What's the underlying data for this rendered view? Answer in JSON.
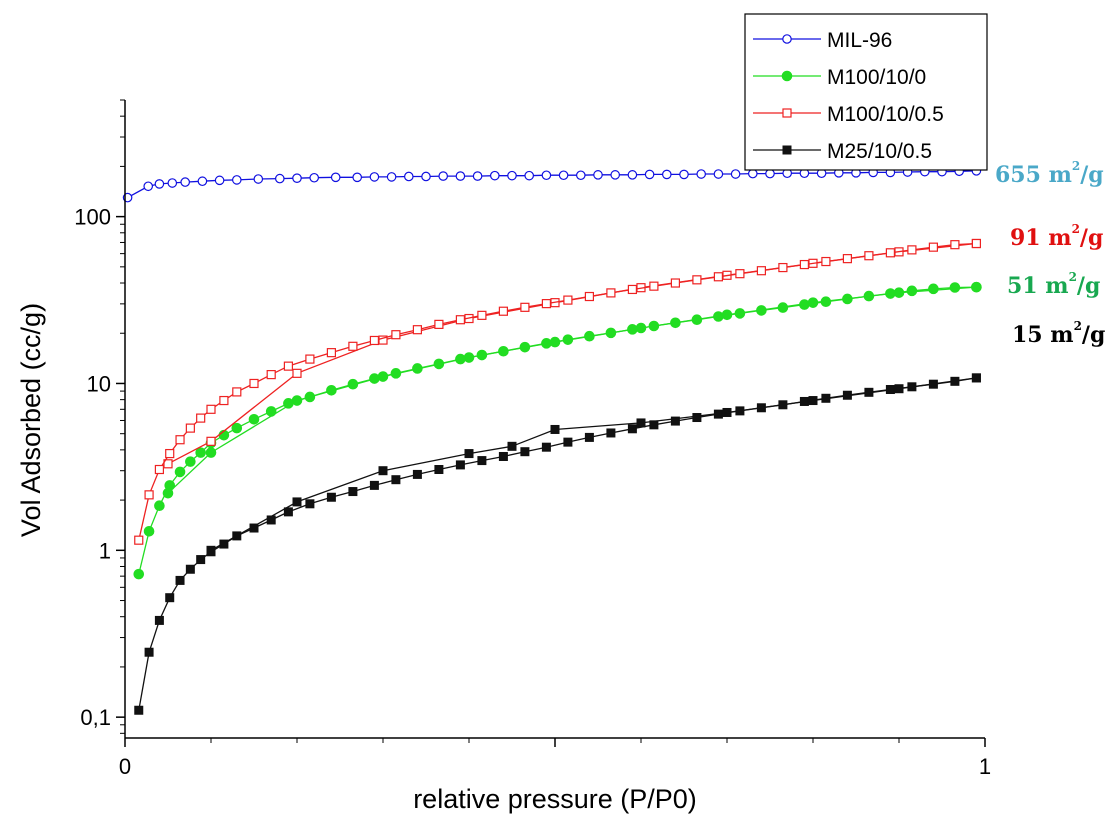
{
  "chart_data": {
    "type": "line",
    "xlabel": "relative pressure (P/P0)",
    "ylabel": "Vol Adsorbed (cc/g)",
    "xlim": [
      0,
      1
    ],
    "ylim": [
      0.075,
      500
    ],
    "yscale": "log",
    "x_ticks": [
      {
        "value": 0,
        "label": "0"
      },
      {
        "value": 0.5,
        "label": ""
      },
      {
        "value": 1,
        "label": "1"
      }
    ],
    "y_ticks": [
      {
        "value": 0.1,
        "label": "0,1"
      },
      {
        "value": 1,
        "label": "1"
      },
      {
        "value": 10,
        "label": "10"
      },
      {
        "value": 100,
        "label": "100"
      }
    ],
    "legend_position": "top-right",
    "grid": false,
    "series": [
      {
        "name": "MIL-96",
        "color": "#1010e0",
        "marker": "circle-open",
        "points": [
          [
            0.003,
            130
          ],
          [
            0.027,
            152
          ],
          [
            0.04,
            157
          ],
          [
            0.055,
            159
          ],
          [
            0.07,
            161
          ],
          [
            0.09,
            163
          ],
          [
            0.11,
            165
          ],
          [
            0.13,
            166
          ],
          [
            0.155,
            168
          ],
          [
            0.18,
            169
          ],
          [
            0.2,
            170
          ],
          [
            0.22,
            171
          ],
          [
            0.245,
            172
          ],
          [
            0.27,
            172
          ],
          [
            0.29,
            173
          ],
          [
            0.31,
            173
          ],
          [
            0.33,
            174
          ],
          [
            0.35,
            174
          ],
          [
            0.37,
            175
          ],
          [
            0.39,
            175
          ],
          [
            0.41,
            175
          ],
          [
            0.43,
            176
          ],
          [
            0.45,
            176
          ],
          [
            0.47,
            176
          ],
          [
            0.49,
            177
          ],
          [
            0.51,
            177
          ],
          [
            0.53,
            177
          ],
          [
            0.55,
            178
          ],
          [
            0.57,
            178
          ],
          [
            0.59,
            178
          ],
          [
            0.61,
            179
          ],
          [
            0.63,
            179
          ],
          [
            0.65,
            179
          ],
          [
            0.67,
            180
          ],
          [
            0.69,
            180
          ],
          [
            0.71,
            180
          ],
          [
            0.73,
            181
          ],
          [
            0.75,
            181
          ],
          [
            0.77,
            182
          ],
          [
            0.79,
            182
          ],
          [
            0.81,
            182
          ],
          [
            0.83,
            183
          ],
          [
            0.85,
            183
          ],
          [
            0.87,
            184
          ],
          [
            0.89,
            184
          ],
          [
            0.91,
            185
          ],
          [
            0.93,
            186
          ],
          [
            0.95,
            186
          ],
          [
            0.97,
            187
          ],
          [
            0.99,
            188
          ]
        ]
      },
      {
        "name": "M100/10/0",
        "color": "#22dd22",
        "marker": "circle-filled",
        "points": [
          [
            0.016,
            0.72
          ],
          [
            0.028,
            1.3
          ],
          [
            0.04,
            1.85
          ],
          [
            0.052,
            2.45
          ],
          [
            0.064,
            2.95
          ],
          [
            0.076,
            3.4
          ],
          [
            0.088,
            3.85
          ],
          [
            0.1,
            4.4
          ],
          [
            0.115,
            4.9
          ],
          [
            0.13,
            5.4
          ],
          [
            0.15,
            6.1
          ],
          [
            0.17,
            6.8
          ],
          [
            0.19,
            7.6
          ],
          [
            0.215,
            8.3
          ],
          [
            0.24,
            9.1
          ],
          [
            0.265,
            9.9
          ],
          [
            0.29,
            10.7
          ],
          [
            0.315,
            11.5
          ],
          [
            0.34,
            12.3
          ],
          [
            0.365,
            13.1
          ],
          [
            0.39,
            14.0
          ],
          [
            0.415,
            14.8
          ],
          [
            0.44,
            15.6
          ],
          [
            0.465,
            16.5
          ],
          [
            0.49,
            17.4
          ],
          [
            0.515,
            18.3
          ],
          [
            0.54,
            19.2
          ],
          [
            0.565,
            20.1
          ],
          [
            0.59,
            21.1
          ],
          [
            0.615,
            22.1
          ],
          [
            0.64,
            23.1
          ],
          [
            0.665,
            24.1
          ],
          [
            0.69,
            25.2
          ],
          [
            0.715,
            26.3
          ],
          [
            0.74,
            27.4
          ],
          [
            0.765,
            28.5
          ],
          [
            0.79,
            29.7
          ],
          [
            0.815,
            30.9
          ],
          [
            0.84,
            32.1
          ],
          [
            0.865,
            33.4
          ],
          [
            0.89,
            34.6
          ],
          [
            0.915,
            35.9
          ],
          [
            0.94,
            36.9
          ],
          [
            0.965,
            37.6
          ],
          [
            0.99,
            37.8
          ]
        ],
        "desorption_points": [
          [
            0.99,
            37.8
          ],
          [
            0.9,
            35.0
          ],
          [
            0.8,
            30.5
          ],
          [
            0.7,
            25.8
          ],
          [
            0.6,
            21.5
          ],
          [
            0.5,
            17.7
          ],
          [
            0.4,
            14.3
          ],
          [
            0.3,
            11.0
          ],
          [
            0.2,
            7.9
          ],
          [
            0.1,
            3.85
          ],
          [
            0.05,
            2.2
          ]
        ]
      },
      {
        "name": "M100/10/0.5",
        "color": "#ee2222",
        "marker": "square-open",
        "points": [
          [
            0.016,
            1.15
          ],
          [
            0.028,
            2.15
          ],
          [
            0.04,
            3.05
          ],
          [
            0.052,
            3.8
          ],
          [
            0.064,
            4.6
          ],
          [
            0.076,
            5.4
          ],
          [
            0.088,
            6.2
          ],
          [
            0.1,
            7.0
          ],
          [
            0.115,
            7.9
          ],
          [
            0.13,
            8.9
          ],
          [
            0.15,
            10.0
          ],
          [
            0.17,
            11.3
          ],
          [
            0.19,
            12.7
          ],
          [
            0.215,
            14.0
          ],
          [
            0.24,
            15.3
          ],
          [
            0.265,
            16.7
          ],
          [
            0.29,
            18.1
          ],
          [
            0.315,
            19.6
          ],
          [
            0.34,
            21.0
          ],
          [
            0.365,
            22.6
          ],
          [
            0.39,
            24.1
          ],
          [
            0.415,
            25.6
          ],
          [
            0.44,
            27.1
          ],
          [
            0.465,
            28.6
          ],
          [
            0.49,
            30.1
          ],
          [
            0.515,
            31.6
          ],
          [
            0.54,
            33.2
          ],
          [
            0.565,
            34.9
          ],
          [
            0.59,
            36.6
          ],
          [
            0.615,
            38.3
          ],
          [
            0.64,
            40.0
          ],
          [
            0.665,
            41.8
          ],
          [
            0.69,
            43.6
          ],
          [
            0.715,
            45.5
          ],
          [
            0.74,
            47.4
          ],
          [
            0.765,
            49.5
          ],
          [
            0.79,
            51.6
          ],
          [
            0.815,
            53.8
          ],
          [
            0.84,
            56.0
          ],
          [
            0.865,
            58.3
          ],
          [
            0.89,
            60.7
          ],
          [
            0.915,
            63.2
          ],
          [
            0.94,
            65.6
          ],
          [
            0.965,
            67.9
          ],
          [
            0.99,
            69.0
          ]
        ],
        "desorption_points": [
          [
            0.99,
            69.0
          ],
          [
            0.9,
            61.5
          ],
          [
            0.8,
            52.5
          ],
          [
            0.7,
            44.5
          ],
          [
            0.6,
            37.5
          ],
          [
            0.5,
            30.5
          ],
          [
            0.4,
            24.5
          ],
          [
            0.3,
            18.2
          ],
          [
            0.2,
            11.5
          ],
          [
            0.1,
            4.5
          ],
          [
            0.05,
            3.3
          ]
        ]
      },
      {
        "name": "M25/10/0.5",
        "color": "#111111",
        "marker": "square-filled",
        "points": [
          [
            0.016,
            0.11
          ],
          [
            0.028,
            0.245
          ],
          [
            0.04,
            0.38
          ],
          [
            0.052,
            0.52
          ],
          [
            0.064,
            0.66
          ],
          [
            0.076,
            0.77
          ],
          [
            0.088,
            0.88
          ],
          [
            0.1,
            0.98
          ],
          [
            0.115,
            1.09
          ],
          [
            0.13,
            1.22
          ],
          [
            0.15,
            1.36
          ],
          [
            0.17,
            1.52
          ],
          [
            0.19,
            1.7
          ],
          [
            0.215,
            1.9
          ],
          [
            0.24,
            2.08
          ],
          [
            0.265,
            2.25
          ],
          [
            0.29,
            2.45
          ],
          [
            0.315,
            2.65
          ],
          [
            0.34,
            2.85
          ],
          [
            0.365,
            3.05
          ],
          [
            0.39,
            3.25
          ],
          [
            0.415,
            3.45
          ],
          [
            0.44,
            3.65
          ],
          [
            0.465,
            3.9
          ],
          [
            0.49,
            4.15
          ],
          [
            0.515,
            4.45
          ],
          [
            0.54,
            4.75
          ],
          [
            0.565,
            5.05
          ],
          [
            0.59,
            5.35
          ],
          [
            0.615,
            5.65
          ],
          [
            0.64,
            5.95
          ],
          [
            0.665,
            6.25
          ],
          [
            0.69,
            6.55
          ],
          [
            0.715,
            6.85
          ],
          [
            0.74,
            7.15
          ],
          [
            0.765,
            7.45
          ],
          [
            0.79,
            7.8
          ],
          [
            0.815,
            8.15
          ],
          [
            0.84,
            8.5
          ],
          [
            0.865,
            8.85
          ],
          [
            0.89,
            9.2
          ],
          [
            0.915,
            9.55
          ],
          [
            0.94,
            9.9
          ],
          [
            0.965,
            10.3
          ],
          [
            0.99,
            10.8
          ]
        ],
        "desorption_points": [
          [
            0.99,
            10.8
          ],
          [
            0.9,
            9.3
          ],
          [
            0.8,
            7.9
          ],
          [
            0.7,
            6.7
          ],
          [
            0.6,
            5.8
          ],
          [
            0.5,
            5.3
          ],
          [
            0.45,
            4.2
          ],
          [
            0.4,
            3.8
          ],
          [
            0.3,
            3.0
          ],
          [
            0.2,
            1.95
          ],
          [
            0.1,
            1.0
          ]
        ]
      }
    ],
    "annotations": [
      {
        "series": "MIL-96",
        "value": "655 m",
        "sup": "2",
        "unit": "/g",
        "color": "#4aa8c8"
      },
      {
        "series": "M100/10/0.5",
        "value": "91 m",
        "sup": "2",
        "unit": "/g",
        "color": "#e01010"
      },
      {
        "series": "M100/10/0",
        "value": "51 m",
        "sup": "2",
        "unit": "/g",
        "color": "#18a850"
      },
      {
        "series": "M25/10/0.5",
        "value": "15 m",
        "sup": "2",
        "unit": "/g",
        "color": "#000000"
      }
    ]
  }
}
